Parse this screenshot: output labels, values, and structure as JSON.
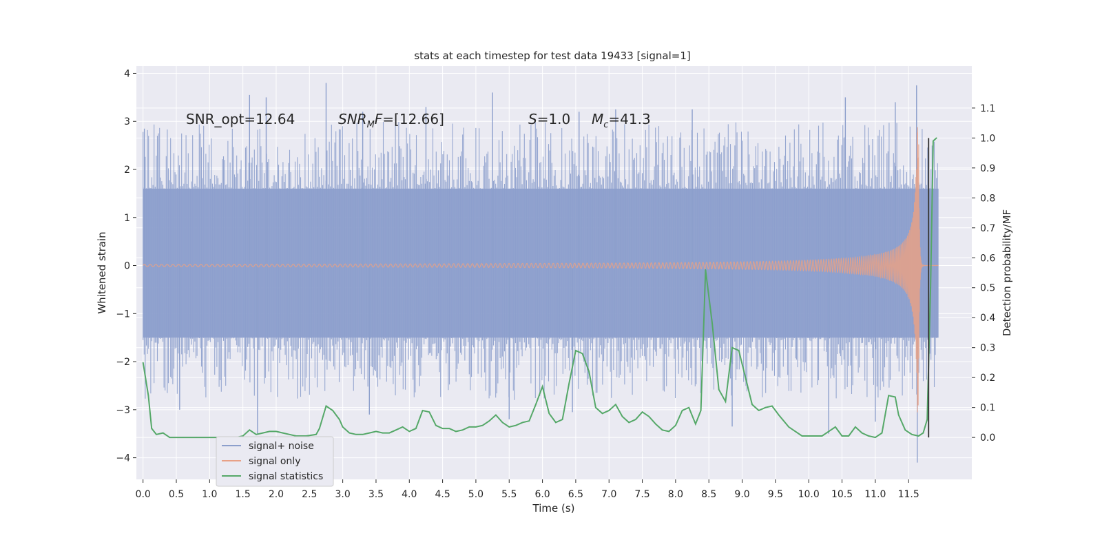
{
  "chart_data": {
    "type": "line",
    "title": "stats at each timestep for test data 19433 [signal=1]",
    "xlabel": "Time (s)",
    "ylabel": "Whitened strain",
    "y2label": "Detection probability/MF",
    "xlim": [
      -0.1,
      12.45
    ],
    "ylim": [
      -4.45,
      4.15
    ],
    "y2lim": [
      -0.14,
      1.24
    ],
    "x_ticks": [
      0.0,
      0.5,
      1.0,
      1.5,
      2.0,
      2.5,
      3.0,
      3.5,
      4.0,
      4.5,
      5.0,
      5.5,
      6.0,
      6.5,
      7.0,
      7.5,
      8.0,
      8.5,
      9.0,
      9.5,
      10.0,
      10.5,
      11.0,
      11.5
    ],
    "x_tick_labels": [
      "0.0",
      "0.5",
      "1.0",
      "1.5",
      "2.0",
      "2.5",
      "3.0",
      "3.5",
      "4.0",
      "4.5",
      "5.0",
      "5.5",
      "6.0",
      "6.5",
      "7.0",
      "7.5",
      "8.0",
      "8.5",
      "9.0",
      "9.5",
      "10.0",
      "10.5",
      "11.0",
      "11.5"
    ],
    "y_ticks": [
      -4,
      -3,
      -2,
      -1,
      0,
      1,
      2,
      3,
      4
    ],
    "y_tick_labels": [
      "−4",
      "−3",
      "−2",
      "−1",
      "0",
      "1",
      "2",
      "3",
      "4"
    ],
    "y2_ticks": [
      0.0,
      0.1,
      0.2,
      0.3,
      0.4,
      0.5,
      0.6,
      0.7,
      0.8,
      0.9,
      1.0,
      1.1
    ],
    "y2_tick_labels": [
      "0.0",
      "0.1",
      "0.2",
      "0.3",
      "0.4",
      "0.5",
      "0.6",
      "0.7",
      "0.8",
      "0.9",
      "1.0",
      "1.1"
    ],
    "grid": true,
    "legend_position": "lower-left",
    "annotations": {
      "snr_opt": "SNR_opt=12.64",
      "snr_mf_label": "SNR",
      "snr_mf_sub": "M",
      "snr_mf_tail": "F",
      "snr_mf_value": "=[12.66]",
      "s_label": "S",
      "s_value": "=1.0",
      "mc_label": "M",
      "mc_sub": "c",
      "mc_value": "=41.3"
    },
    "vertical_marker_x": 11.8,
    "colors": {
      "noise": "#8c9fcc",
      "signal": "#e8a186",
      "stats": "#55a868",
      "marker": "#3d3d3d",
      "background": "#eaeaf2",
      "grid": "#ffffff"
    },
    "series": [
      {
        "name": "signal+ noise",
        "kind": "noise_band",
        "x_range": [
          0.0,
          11.95
        ],
        "typical_envelope": [
          -1.5,
          1.6
        ],
        "spike_range": [
          -4.1,
          3.8
        ],
        "spikes": [
          [
            0.02,
            2.85
          ],
          [
            0.55,
            -3.0
          ],
          [
            1.6,
            3.55
          ],
          [
            1.72,
            -3.5
          ],
          [
            1.85,
            3.5
          ],
          [
            2.75,
            3.8
          ],
          [
            3.3,
            3.2
          ],
          [
            3.4,
            -3.1
          ],
          [
            4.25,
            3.3
          ],
          [
            5.25,
            3.6
          ],
          [
            5.5,
            -3.2
          ],
          [
            6.45,
            -3.05
          ],
          [
            6.55,
            3.2
          ],
          [
            7.1,
            3.25
          ],
          [
            8.25,
            3.25
          ],
          [
            8.85,
            -3.35
          ],
          [
            10.3,
            -3.5
          ],
          [
            10.55,
            3.5
          ],
          [
            11.0,
            -3.25
          ],
          [
            11.3,
            3.4
          ],
          [
            11.62,
            3.75
          ],
          [
            11.63,
            -4.1
          ]
        ]
      },
      {
        "name": "signal only",
        "kind": "chirp",
        "x_range": [
          0.0,
          11.95
        ],
        "merger_time": 11.65,
        "peak_amplitude": 3.1
      },
      {
        "name": "signal statistics",
        "kind": "line",
        "axis": "right",
        "x": [
          0.0,
          0.08,
          0.13,
          0.2,
          0.3,
          0.4,
          0.5,
          0.6,
          0.8,
          1.0,
          1.2,
          1.4,
          1.5,
          1.6,
          1.7,
          1.8,
          1.9,
          2.0,
          2.1,
          2.2,
          2.3,
          2.45,
          2.6,
          2.65,
          2.75,
          2.85,
          2.95,
          3.0,
          3.1,
          3.2,
          3.3,
          3.4,
          3.5,
          3.6,
          3.7,
          3.8,
          3.9,
          4.0,
          4.1,
          4.2,
          4.3,
          4.4,
          4.5,
          4.6,
          4.7,
          4.8,
          4.9,
          5.0,
          5.1,
          5.2,
          5.3,
          5.4,
          5.5,
          5.6,
          5.7,
          5.8,
          5.9,
          6.0,
          6.1,
          6.2,
          6.3,
          6.4,
          6.5,
          6.6,
          6.7,
          6.8,
          6.9,
          7.0,
          7.1,
          7.2,
          7.3,
          7.4,
          7.5,
          7.6,
          7.7,
          7.8,
          7.9,
          8.0,
          8.1,
          8.2,
          8.3,
          8.38,
          8.45,
          8.55,
          8.65,
          8.75,
          8.85,
          8.95,
          9.05,
          9.15,
          9.25,
          9.35,
          9.45,
          9.55,
          9.7,
          9.9,
          10.1,
          10.2,
          10.3,
          10.4,
          10.5,
          10.6,
          10.7,
          10.8,
          10.9,
          11.0,
          11.1,
          11.2,
          11.3,
          11.35,
          11.45,
          11.55,
          11.65,
          11.72,
          11.78,
          11.83,
          11.87,
          11.92
        ],
        "values": [
          0.25,
          0.14,
          0.03,
          0.01,
          0.015,
          0.0,
          0.0,
          0.0,
          0.0,
          0.0,
          0.0,
          0.0,
          0.005,
          0.025,
          0.01,
          0.015,
          0.02,
          0.02,
          0.015,
          0.01,
          0.005,
          0.005,
          0.01,
          0.03,
          0.105,
          0.09,
          0.06,
          0.035,
          0.015,
          0.01,
          0.01,
          0.015,
          0.02,
          0.015,
          0.015,
          0.025,
          0.035,
          0.02,
          0.03,
          0.09,
          0.085,
          0.04,
          0.03,
          0.03,
          0.02,
          0.025,
          0.035,
          0.035,
          0.04,
          0.055,
          0.075,
          0.05,
          0.035,
          0.04,
          0.05,
          0.055,
          0.11,
          0.17,
          0.08,
          0.05,
          0.06,
          0.18,
          0.29,
          0.28,
          0.22,
          0.1,
          0.08,
          0.09,
          0.11,
          0.07,
          0.05,
          0.06,
          0.085,
          0.07,
          0.045,
          0.025,
          0.02,
          0.04,
          0.09,
          0.1,
          0.045,
          0.09,
          0.56,
          0.38,
          0.16,
          0.12,
          0.3,
          0.29,
          0.2,
          0.11,
          0.09,
          0.1,
          0.105,
          0.075,
          0.035,
          0.005,
          0.005,
          0.005,
          0.02,
          0.035,
          0.005,
          0.005,
          0.035,
          0.015,
          0.005,
          0.0,
          0.015,
          0.14,
          0.135,
          0.075,
          0.025,
          0.01,
          0.005,
          0.015,
          0.06,
          0.5,
          0.99,
          1.0
        ]
      }
    ]
  }
}
